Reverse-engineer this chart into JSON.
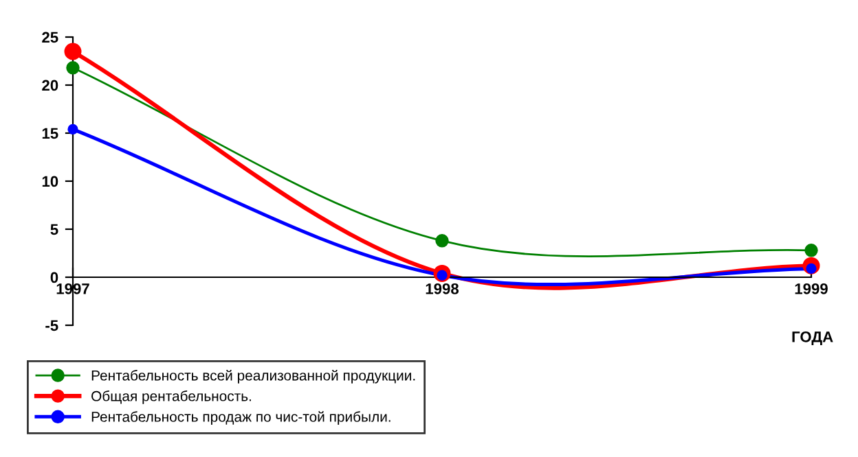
{
  "chart_data": {
    "type": "line",
    "xlabel": "ГОДА",
    "categories": [
      "1997",
      "1998",
      "1999"
    ],
    "series": [
      {
        "name": "Рентабельность всей реализованной продукции.",
        "color": "#008000",
        "values": [
          21.8,
          3.8,
          2.8
        ]
      },
      {
        "name": "Общая рентабельность.",
        "color": "#ff0000",
        "values": [
          23.5,
          0.4,
          1.2
        ]
      },
      {
        "name": "Рентабельность продаж по чис-той прибыли.",
        "color": "#0000ff",
        "values": [
          15.4,
          0.2,
          0.9
        ]
      }
    ],
    "ylim": [
      -5,
      25
    ],
    "yticks": [
      -5,
      0,
      5,
      10,
      15,
      20,
      25
    ],
    "grid": false,
    "legend": "bottom left",
    "marker": "circle",
    "line_style": "solid"
  }
}
